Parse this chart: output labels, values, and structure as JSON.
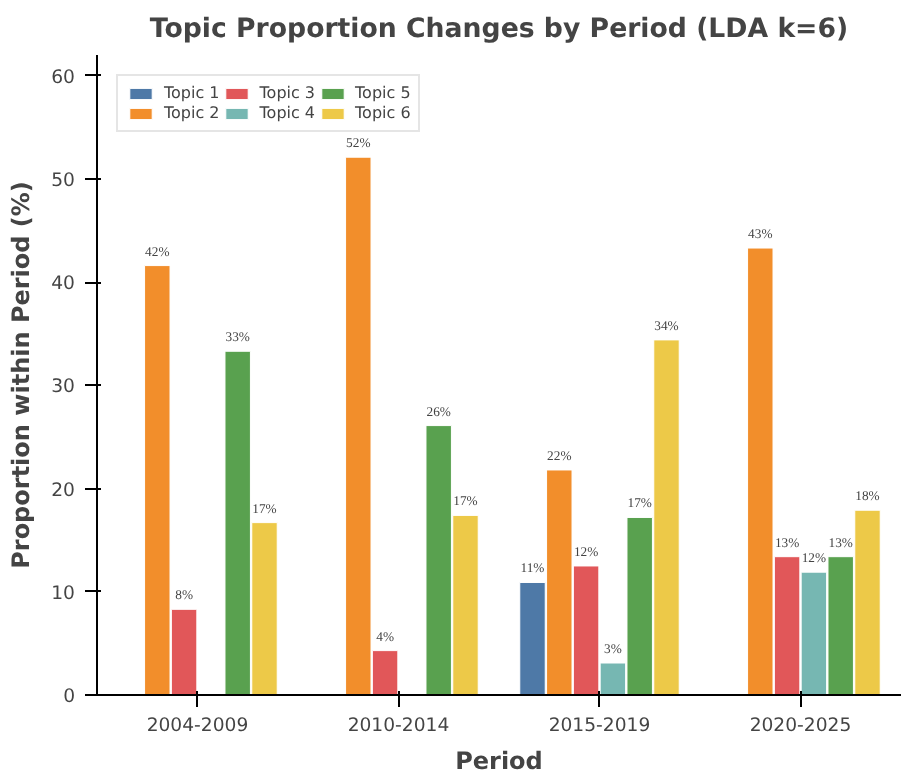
{
  "chart_data": {
    "type": "bar",
    "title": "Topic Proportion Changes by Period (LDA k=6)",
    "xlabel": "Period",
    "ylabel": "Proportion within Period (%)",
    "categories": [
      "2004-2009",
      "2010-2014",
      "2015-2019",
      "2020-2025"
    ],
    "series": [
      {
        "name": "Topic 1",
        "color": "#4e79a7",
        "values": [
          null,
          null,
          10.9,
          null
        ],
        "value_labels": [
          null,
          null,
          "11%",
          null
        ]
      },
      {
        "name": "Topic 2",
        "color": "#f28e2b",
        "values": [
          41.6,
          52.1,
          21.8,
          43.3
        ],
        "value_labels": [
          "42%",
          "52%",
          "22%",
          "43%"
        ]
      },
      {
        "name": "Topic 3",
        "color": "#e15759",
        "values": [
          8.3,
          4.3,
          12.5,
          13.4
        ],
        "value_labels": [
          "8%",
          "4%",
          "12%",
          "13%"
        ]
      },
      {
        "name": "Topic 4",
        "color": "#76b7b2",
        "values": [
          null,
          null,
          3.1,
          11.9
        ],
        "value_labels": [
          null,
          null,
          "3%",
          "12%"
        ]
      },
      {
        "name": "Topic 5",
        "color": "#59a14f",
        "values": [
          33.3,
          26.1,
          17.2,
          13.4
        ],
        "value_labels": [
          "33%",
          "26%",
          "17%",
          "13%"
        ]
      },
      {
        "name": "Topic 6",
        "color": "#edc948",
        "values": [
          16.7,
          17.4,
          34.4,
          17.9
        ],
        "value_labels": [
          "17%",
          "17%",
          "34%",
          "18%"
        ]
      }
    ],
    "ylim": [
      0,
      62
    ],
    "yticks": [
      0,
      10,
      20,
      30,
      40,
      50,
      60
    ],
    "grid": false,
    "legend": "top left"
  }
}
